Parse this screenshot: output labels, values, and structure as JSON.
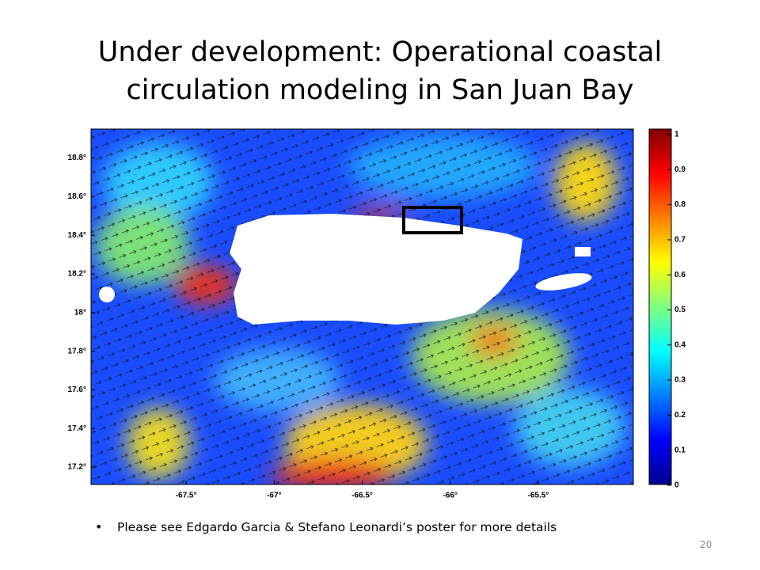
{
  "title": [
    "Under development: Operational coastal",
    "circulation modeling in San Juan Bay"
  ],
  "map": {
    "xlim": [
      -68.04,
      -64.96
    ],
    "ylim": [
      17.11,
      18.95
    ],
    "xticks": [
      {
        "value": -67.5,
        "label": "-67.5°"
      },
      {
        "value": -67,
        "label": "-67°"
      },
      {
        "value": -66.5,
        "label": "-66.5°"
      },
      {
        "value": -66,
        "label": "-66°"
      },
      {
        "value": -65.5,
        "label": "-65.5°"
      }
    ],
    "yticks": [
      {
        "value": 17.2,
        "label": "17.2°"
      },
      {
        "value": 17.4,
        "label": "17.4°"
      },
      {
        "value": 17.6,
        "label": "17.6°"
      },
      {
        "value": 17.8,
        "label": "17.8°"
      },
      {
        "value": 18,
        "label": "18°"
      },
      {
        "value": 18.2,
        "label": "18.2°"
      },
      {
        "value": 18.4,
        "label": "18.4°"
      },
      {
        "value": 18.6,
        "label": "18.6°"
      },
      {
        "value": 18.8,
        "label": "18.8°"
      }
    ],
    "colorbar": {
      "lim": [
        0,
        1
      ],
      "ticks": [
        0,
        0.1,
        0.2,
        0.3,
        0.4,
        0.5,
        0.6,
        0.7,
        0.8,
        0.9,
        1
      ]
    }
  },
  "bullet": "Please see Edgardo Garcia & Stefano Leonardi’s  poster for more details",
  "page_number": "20"
}
